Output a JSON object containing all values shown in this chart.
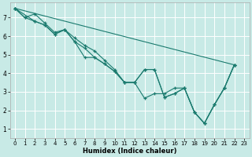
{
  "xlabel": "Humidex (Indice chaleur)",
  "bg_color": "#c8eae6",
  "line_color": "#1a7a6e",
  "grid_color": "#ffffff",
  "xlim": [
    -0.5,
    23.5
  ],
  "ylim": [
    0.5,
    7.8
  ],
  "xticks": [
    0,
    1,
    2,
    3,
    4,
    5,
    6,
    7,
    8,
    9,
    10,
    11,
    12,
    13,
    14,
    15,
    16,
    17,
    18,
    19,
    20,
    21,
    22,
    23
  ],
  "yticks": [
    1,
    2,
    3,
    4,
    5,
    6,
    7
  ],
  "lines": [
    {
      "x": [
        0,
        1,
        2,
        3,
        4,
        5,
        6,
        7,
        8,
        9,
        10,
        11,
        12,
        13,
        14,
        15,
        16,
        17,
        18,
        19,
        20,
        21,
        22
      ],
      "y": [
        7.5,
        7.0,
        7.2,
        6.7,
        6.2,
        6.35,
        5.9,
        5.5,
        5.2,
        4.7,
        4.2,
        3.5,
        3.5,
        4.2,
        4.2,
        2.7,
        2.9,
        3.2,
        1.9,
        1.3,
        2.3,
        3.2,
        4.45
      ]
    },
    {
      "x": [
        0,
        1,
        2,
        3,
        4,
        5,
        6,
        7,
        8,
        9,
        10,
        11,
        12,
        13,
        14,
        15,
        16,
        17,
        18,
        19,
        20,
        21,
        22
      ],
      "y": [
        7.5,
        7.0,
        6.8,
        6.6,
        6.1,
        6.35,
        5.7,
        5.35,
        4.85,
        4.5,
        4.1,
        3.5,
        3.5,
        4.2,
        4.2,
        2.7,
        2.9,
        3.2,
        1.9,
        1.3,
        2.3,
        3.2,
        4.45
      ]
    },
    {
      "x": [
        0,
        2,
        3,
        4,
        5,
        6,
        7,
        8,
        9,
        10,
        11,
        12,
        13,
        14,
        15,
        16,
        17,
        18,
        19,
        20,
        21,
        22
      ],
      "y": [
        7.5,
        6.8,
        6.6,
        6.1,
        6.35,
        5.7,
        4.85,
        4.85,
        4.5,
        4.1,
        3.5,
        3.5,
        2.65,
        2.9,
        2.9,
        3.2,
        3.2,
        1.9,
        1.3,
        2.3,
        3.2,
        4.45
      ]
    },
    {
      "x": [
        0,
        22
      ],
      "y": [
        7.5,
        4.45
      ]
    }
  ]
}
